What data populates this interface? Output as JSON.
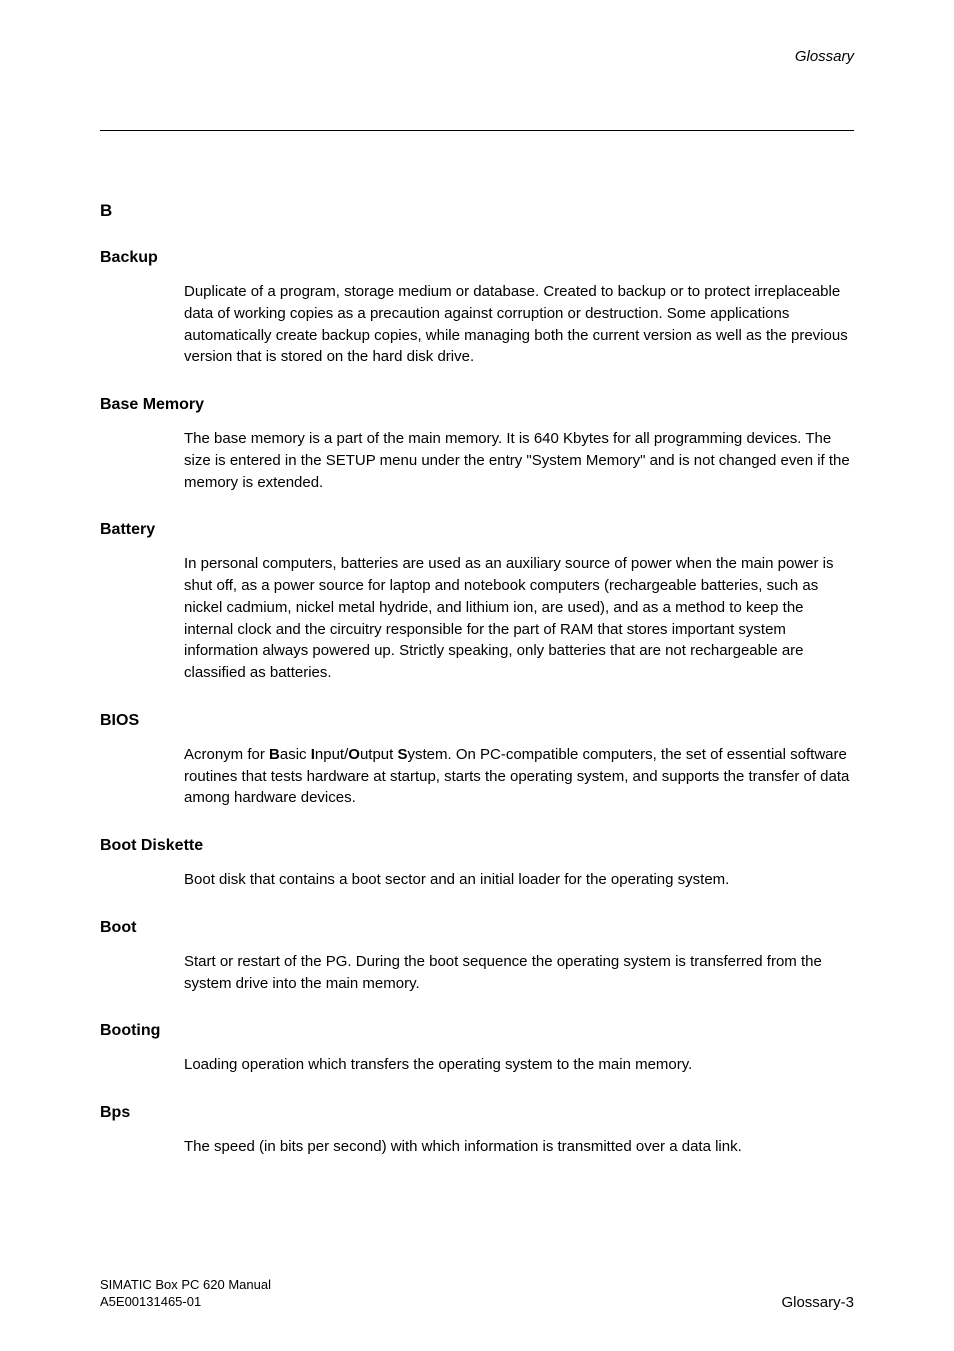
{
  "header": {
    "section": "Glossary"
  },
  "letter": "B",
  "entries": [
    {
      "term": "Backup",
      "def": "Duplicate of a program, storage medium or database. Created to backup or to protect irreplaceable data of working copies as a precaution against corruption or destruction. Some applications automatically create backup copies, while managing both the current version as well as the previous version that is stored on the hard disk drive."
    },
    {
      "term": "Base Memory",
      "def": "The base memory is a part of the main memory. It is 640 Kbytes for all programming devices. The size is entered in the SETUP menu under the entry \"System Memory\" and is not changed even if the memory is extended."
    },
    {
      "term": "Battery",
      "def": "In personal computers, batteries are used as an auxiliary source of power when the main power is shut off, as a power source for laptop and notebook computers (rechargeable batteries, such as nickel cadmium, nickel metal hydride, and lithium ion, are used), and as a method to keep the internal clock and the circuitry responsible for the part of RAM that stores important system information always powered up.  Strictly speaking, only batteries that are not rechargeable are classified as batteries."
    },
    {
      "term": "BIOS",
      "def_html": "Acronym for <b>B</b>asic <b>I</b>nput/<b>O</b>utput <b>S</b>ystem. On PC-compatible computers, the set of essential software routines that tests hardware at startup, starts the operating system, and supports the transfer of data among hardware devices."
    },
    {
      "term": "Boot Diskette",
      "def": "Boot disk that contains a boot sector and an initial loader for the operating system."
    },
    {
      "term": "Boot",
      "def": "Start or restart of the PG. During the boot sequence the operating system is transferred from the system drive into the main memory."
    },
    {
      "term": "Booting",
      "def": "Loading operation which transfers the operating system to the main memory."
    },
    {
      "term": "Bps",
      "def": "The speed (in bits per second) with which information is transmitted over a data link."
    }
  ],
  "footer": {
    "doc_title": "SIMATIC Box PC 620  Manual",
    "doc_number": "A5E00131465-01",
    "page_label": "Glossary-3"
  }
}
